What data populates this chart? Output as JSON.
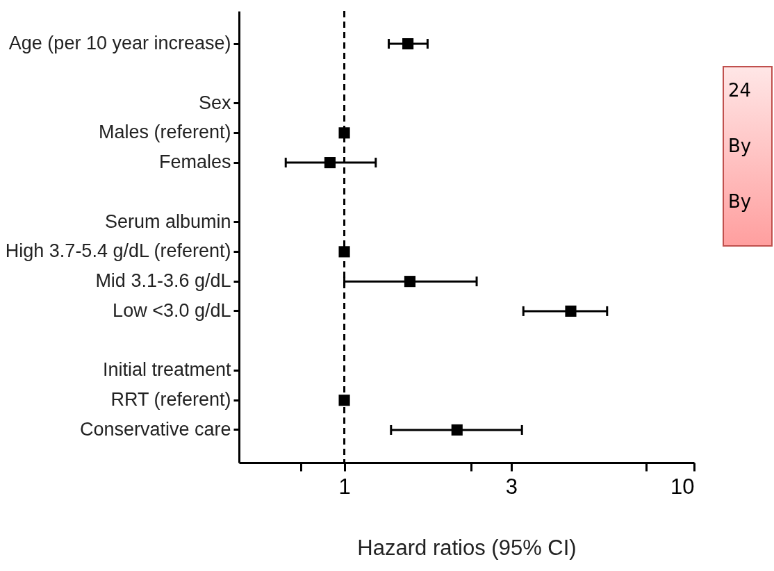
{
  "chart_data": {
    "type": "scatter",
    "orientation": "horizontal",
    "xlabel": "Hazard ratios (95% CI)",
    "categories": [
      "Age (per 10 year increase)",
      null,
      "Sex",
      "Males (referent)",
      "Females",
      null,
      "Serum albumin",
      "High 3.7-5.4 g/dL (referent)",
      "Mid 3.1-3.6 g/dL",
      "Low <3.0 g/dL",
      null,
      "Initial treatment",
      "RRT (referent)",
      "Conservative care"
    ],
    "series": [
      {
        "color": "#000000",
        "values": [
          1.52,
          null,
          null,
          1,
          0.91,
          null,
          null,
          1,
          1.54,
          4.44,
          null,
          null,
          1,
          2.1
        ],
        "errors": [
          [
            1.34,
            1.73
          ],
          null,
          null,
          null,
          [
            0.68,
            1.23
          ],
          null,
          null,
          null,
          [
            1.0,
            2.39
          ],
          [
            3.25,
            5.64
          ],
          null,
          null,
          null,
          [
            1.36,
            3.22
          ]
        ]
      }
    ],
    "log": "x",
    "xlim": [
      0.5,
      10
    ],
    "xticks": [
      {
        "value": 0.75,
        "label": null
      },
      1,
      {
        "value": 2.3,
        "label": null
      },
      3,
      {
        "value": 7.3,
        "label": null
      },
      10
    ],
    "ref_lines": [
      {
        "axis": "x",
        "value": 1,
        "line_style": "dashed"
      }
    ],
    "marker": "square",
    "grid": false,
    "annotations": [
      "24",
      "By",
      "By"
    ]
  }
}
